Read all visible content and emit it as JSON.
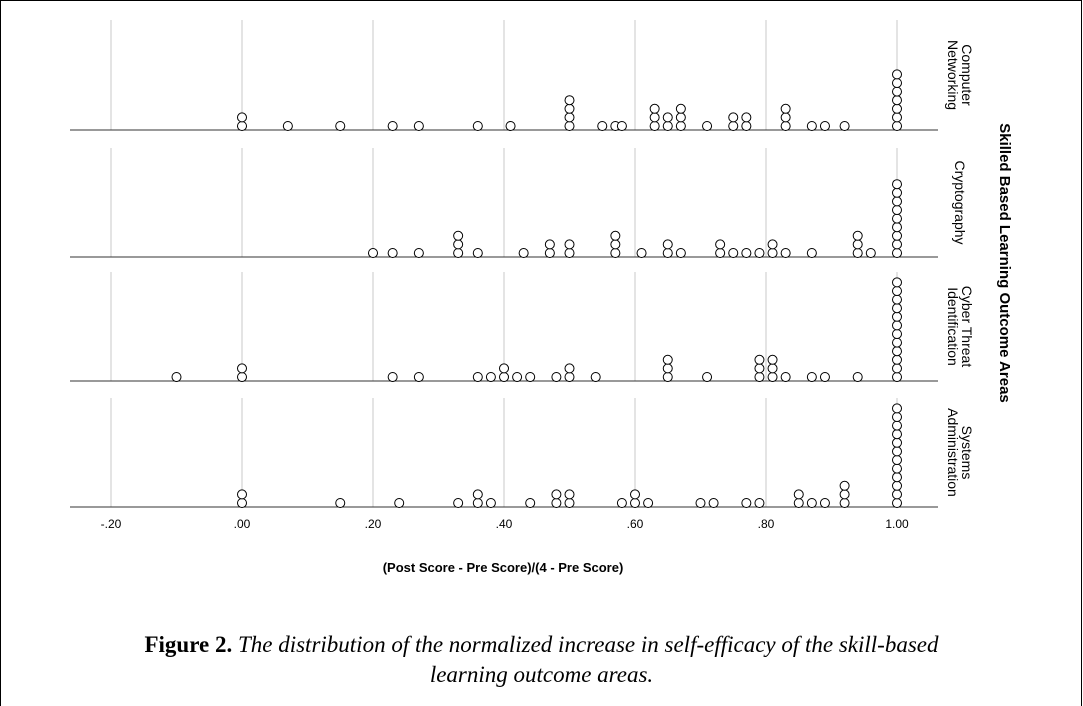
{
  "chart_data": {
    "type": "scatter",
    "subtype": "stacked dot plot, faceted by panel",
    "xlabel": "(Post Score - Pre Score)/(4 - Pre Score)",
    "ylabel": "Skilled Based Learning Outcome Areas",
    "xlim": [
      -0.2,
      1.0
    ],
    "xticks": [
      -0.2,
      0.0,
      0.2,
      0.4,
      0.6,
      0.8,
      1.0
    ],
    "xtick_labels": [
      "-.20",
      ".00",
      ".20",
      ".40",
      ".60",
      ".80",
      "1.00"
    ],
    "grid": true,
    "panels": [
      {
        "name": "Computer Networking",
        "label_lines": [
          "Computer",
          "Networking"
        ],
        "points": [
          [
            0.0,
            2
          ],
          [
            0.07,
            1
          ],
          [
            0.15,
            1
          ],
          [
            0.23,
            1
          ],
          [
            0.27,
            1
          ],
          [
            0.36,
            1
          ],
          [
            0.41,
            1
          ],
          [
            0.5,
            4
          ],
          [
            0.55,
            1
          ],
          [
            0.57,
            1
          ],
          [
            0.58,
            1
          ],
          [
            0.63,
            3
          ],
          [
            0.65,
            2
          ],
          [
            0.67,
            3
          ],
          [
            0.71,
            1
          ],
          [
            0.75,
            2
          ],
          [
            0.77,
            2
          ],
          [
            0.83,
            3
          ],
          [
            0.87,
            1
          ],
          [
            0.89,
            1
          ],
          [
            0.92,
            1
          ],
          [
            1.0,
            7
          ]
        ]
      },
      {
        "name": "Cryptography",
        "label_lines": [
          "Cryptography"
        ],
        "points": [
          [
            0.2,
            1
          ],
          [
            0.23,
            1
          ],
          [
            0.27,
            1
          ],
          [
            0.33,
            3
          ],
          [
            0.36,
            1
          ],
          [
            0.43,
            1
          ],
          [
            0.47,
            2
          ],
          [
            0.5,
            2
          ],
          [
            0.57,
            3
          ],
          [
            0.61,
            1
          ],
          [
            0.65,
            2
          ],
          [
            0.67,
            1
          ],
          [
            0.73,
            2
          ],
          [
            0.75,
            1
          ],
          [
            0.77,
            1
          ],
          [
            0.79,
            1
          ],
          [
            0.81,
            2
          ],
          [
            0.83,
            1
          ],
          [
            0.87,
            1
          ],
          [
            0.94,
            3
          ],
          [
            0.96,
            1
          ],
          [
            1.0,
            9
          ]
        ]
      },
      {
        "name": "Cyber Threat Identification",
        "label_lines": [
          "Cyber Threat",
          "Identification"
        ],
        "points": [
          [
            -0.1,
            1
          ],
          [
            0.0,
            2
          ],
          [
            0.23,
            1
          ],
          [
            0.27,
            1
          ],
          [
            0.36,
            1
          ],
          [
            0.38,
            1
          ],
          [
            0.4,
            2
          ],
          [
            0.42,
            1
          ],
          [
            0.44,
            1
          ],
          [
            0.48,
            1
          ],
          [
            0.5,
            2
          ],
          [
            0.54,
            1
          ],
          [
            0.65,
            3
          ],
          [
            0.71,
            1
          ],
          [
            0.79,
            3
          ],
          [
            0.81,
            3
          ],
          [
            0.83,
            1
          ],
          [
            0.87,
            1
          ],
          [
            0.89,
            1
          ],
          [
            0.94,
            1
          ],
          [
            1.0,
            12
          ]
        ]
      },
      {
        "name": "Systems Administration",
        "label_lines": [
          "Systems",
          "Administration"
        ],
        "points": [
          [
            0.0,
            2
          ],
          [
            0.15,
            1
          ],
          [
            0.24,
            1
          ],
          [
            0.33,
            1
          ],
          [
            0.36,
            2
          ],
          [
            0.38,
            1
          ],
          [
            0.44,
            1
          ],
          [
            0.48,
            2
          ],
          [
            0.5,
            2
          ],
          [
            0.58,
            1
          ],
          [
            0.6,
            2
          ],
          [
            0.62,
            1
          ],
          [
            0.7,
            1
          ],
          [
            0.72,
            1
          ],
          [
            0.77,
            1
          ],
          [
            0.79,
            1
          ],
          [
            0.85,
            2
          ],
          [
            0.87,
            1
          ],
          [
            0.89,
            1
          ],
          [
            0.92,
            3
          ],
          [
            1.0,
            12
          ]
        ]
      }
    ]
  },
  "caption": {
    "label": "Figure 2.",
    "text_line1": " The distribution of the normalized increase in self-efficacy of the skill-based",
    "text_line2": "learning outcome areas."
  }
}
